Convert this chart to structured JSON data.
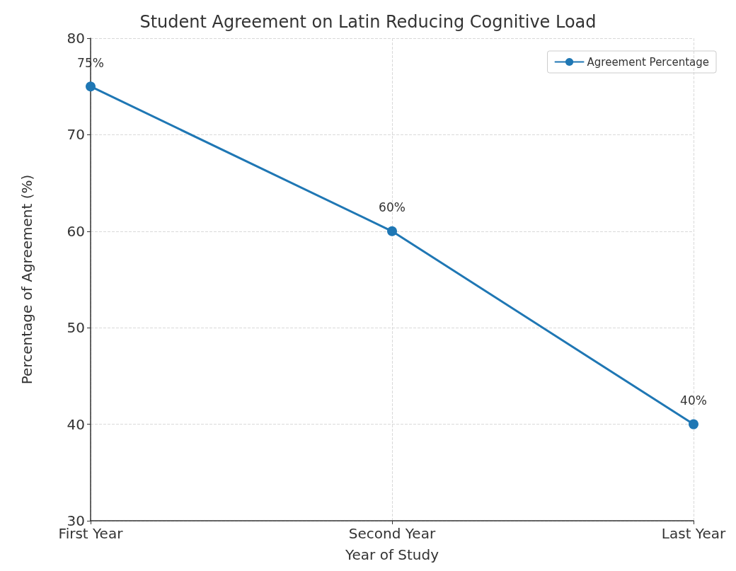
{
  "chart_data": {
    "type": "line",
    "title": "Student Agreement on Latin Reducing Cognitive Load",
    "xlabel": "Year of Study",
    "ylabel": "Percentage of Agreement (%)",
    "categories": [
      "First Year",
      "Second Year",
      "Last Year"
    ],
    "series": [
      {
        "name": "Agreement Percentage",
        "color": "#1f77b4",
        "values": [
          75,
          60,
          40
        ],
        "value_labels": [
          "75%",
          "60%",
          "40%"
        ]
      }
    ],
    "ylim": [
      30,
      80
    ],
    "yticks": [
      30,
      40,
      50,
      60,
      70,
      80
    ],
    "grid": true,
    "legend": "top right",
    "marker": "circle",
    "line_style": "solid"
  }
}
